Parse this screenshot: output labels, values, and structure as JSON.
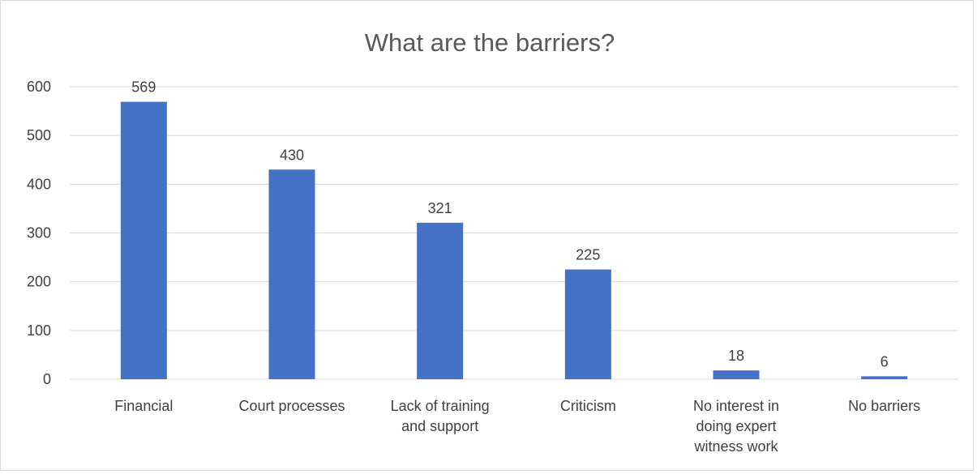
{
  "chart_data": {
    "type": "bar",
    "title": "What are the barriers?",
    "xlabel": "",
    "ylabel": "",
    "ylim": [
      0,
      600
    ],
    "yticks": [
      "0",
      "100",
      "200",
      "300",
      "400",
      "500",
      "600"
    ],
    "grid": true,
    "legend": "none",
    "bar_color": "#4472C4",
    "categories": [
      [
        "Financial"
      ],
      [
        "Court processes"
      ],
      [
        "Lack of training",
        "and support"
      ],
      [
        "Criticism"
      ],
      [
        "No interest in",
        "doing expert",
        "witness work"
      ],
      [
        "No barriers"
      ]
    ],
    "values": [
      569,
      430,
      321,
      225,
      18,
      6
    ],
    "data_labels": [
      "569",
      "430",
      "321",
      "225",
      "18",
      "6"
    ]
  }
}
